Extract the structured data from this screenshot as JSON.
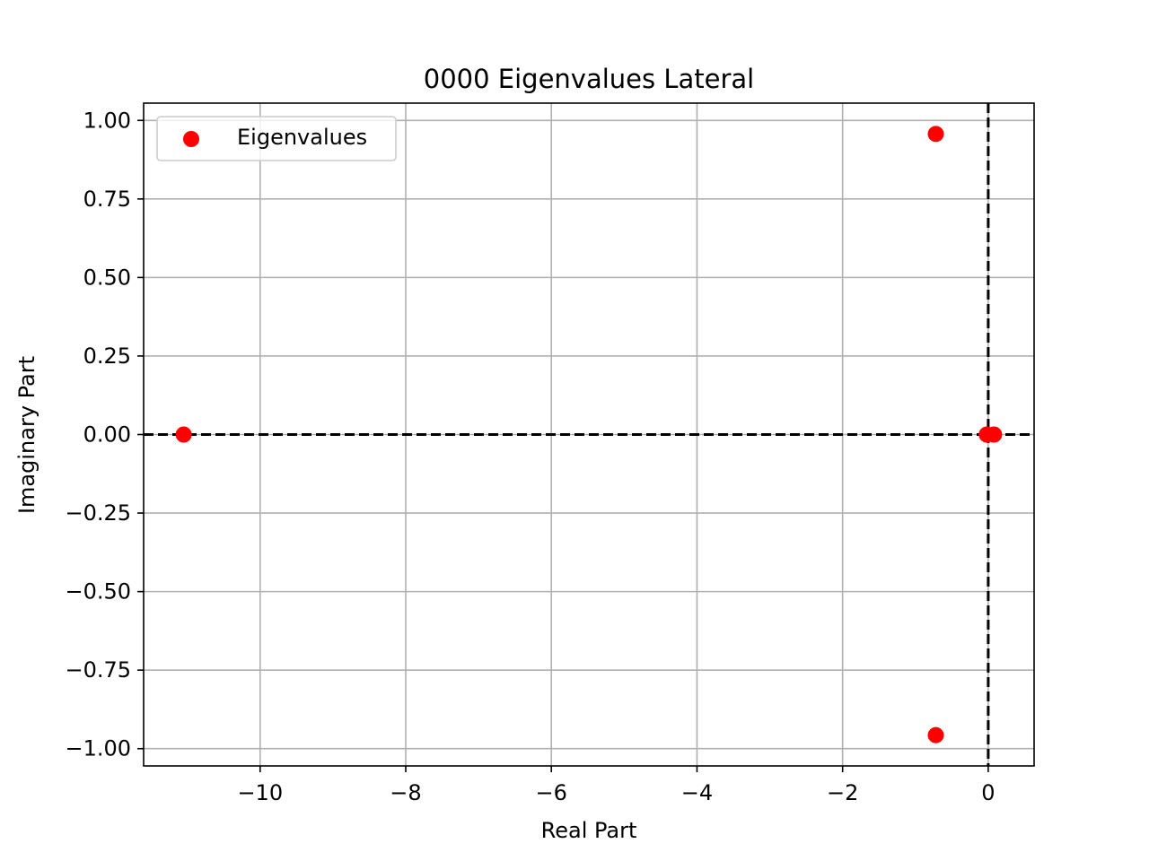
{
  "chart_data": {
    "type": "scatter",
    "title": "0000 Eigenvalues Lateral",
    "xlabel": "Real Part",
    "ylabel": "Imaginary Part",
    "xlim": [
      -11.6,
      0.63
    ],
    "ylim": [
      -1.055,
      1.055
    ],
    "x_ticks": [
      -10,
      -8,
      -6,
      -4,
      -2,
      0
    ],
    "x_tick_labels": [
      "−10",
      "−8",
      "−6",
      "−4",
      "−2",
      "0"
    ],
    "y_ticks": [
      1.0,
      0.75,
      0.5,
      0.25,
      0.0,
      -0.25,
      -0.5,
      -0.75,
      -1.0
    ],
    "y_tick_labels": [
      "1.00",
      "0.75",
      "0.50",
      "0.25",
      "0.00",
      "−0.25",
      "−0.50",
      "−0.75",
      "−1.00"
    ],
    "grid": true,
    "legend_position": "top-left",
    "reference_lines": {
      "x": 0,
      "y": 0,
      "style": "dashed",
      "color": "#000000"
    },
    "series": [
      {
        "name": "Eigenvalues",
        "color": "#ff0000",
        "points": [
          {
            "x": -11.05,
            "y": 0.0
          },
          {
            "x": -0.72,
            "y": 0.957
          },
          {
            "x": -0.72,
            "y": -0.957
          },
          {
            "x": -0.02,
            "y": 0.0
          },
          {
            "x": 0.08,
            "y": 0.0
          }
        ]
      }
    ]
  }
}
